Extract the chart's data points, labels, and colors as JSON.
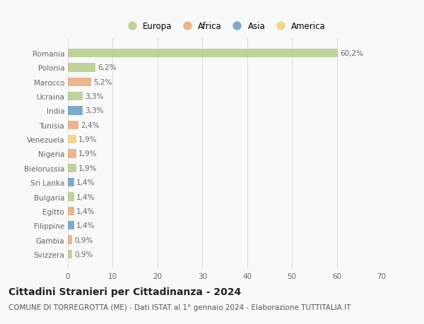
{
  "categories": [
    "Svizzera",
    "Gambia",
    "Filippine",
    "Egitto",
    "Bulgaria",
    "Sri Lanka",
    "Bielorussia",
    "Nigeria",
    "Venezuela",
    "Tunisia",
    "India",
    "Ucraina",
    "Marocco",
    "Polonia",
    "Romania"
  ],
  "values": [
    0.9,
    0.9,
    1.4,
    1.4,
    1.4,
    1.4,
    1.9,
    1.9,
    1.9,
    2.4,
    3.3,
    3.3,
    5.2,
    6.2,
    60.2
  ],
  "labels": [
    "0,9%",
    "0,9%",
    "1,4%",
    "1,4%",
    "1,4%",
    "1,4%",
    "1,9%",
    "1,9%",
    "1,9%",
    "2,4%",
    "3,3%",
    "3,3%",
    "5,2%",
    "6,2%",
    "60,2%"
  ],
  "continents": [
    "Europa",
    "Africa",
    "Asia",
    "Africa",
    "Europa",
    "Asia",
    "Europa",
    "Africa",
    "America",
    "Africa",
    "Asia",
    "Europa",
    "Africa",
    "Europa",
    "Europa"
  ],
  "continent_colors": {
    "Europa": "#b5cc8e",
    "Africa": "#e8a87c",
    "Asia": "#6b9dc2",
    "America": "#f0d080"
  },
  "xlim": [
    0,
    70
  ],
  "xticks": [
    0,
    10,
    20,
    30,
    40,
    50,
    60,
    70
  ],
  "grid_color": "#dddddd",
  "background_color": "#f9f9f9",
  "bar_height": 0.6,
  "title": "Cittadini Stranieri per Cittadinanza - 2024",
  "subtitle": "COMUNE DI TORREGROTTA (ME) - Dati ISTAT al 1° gennaio 2024 - Elaborazione TUTTITALIA.IT",
  "title_fontsize": 10,
  "subtitle_fontsize": 7.5,
  "tick_fontsize": 7.5,
  "label_fontsize": 7.5,
  "legend_fontsize": 8.5,
  "legend_entries": [
    "Europa",
    "Africa",
    "Asia",
    "America"
  ]
}
